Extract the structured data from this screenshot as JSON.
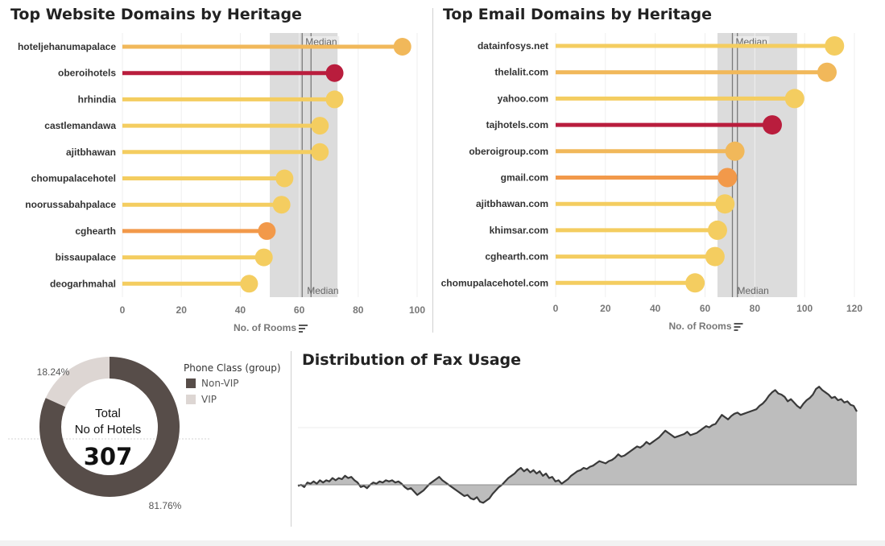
{
  "colors": {
    "light": "#f4cd60",
    "mid": "#f1b85a",
    "orange": "#f2994a",
    "crimson": "#b91d3d",
    "band": "#dcdcdc",
    "dark": "#574d49",
    "vip": "#ddd6d3",
    "area": "#bdbdbd",
    "axis_text": "#777777",
    "label_text": "#333333"
  },
  "chart_data": [
    {
      "type": "lollipop",
      "title": "Top Website Domains by Heritage",
      "xlabel": "No. of Rooms",
      "xlim": [
        0,
        100
      ],
      "xticks": [
        0,
        20,
        40,
        60,
        80,
        100
      ],
      "reference_label": "Median",
      "median_lines": [
        61,
        64
      ],
      "band": [
        50,
        73
      ],
      "categories": [
        "hoteljehanumapalace",
        "oberoihotels",
        "hrhindia",
        "castlemandawa",
        "ajitbhawan",
        "chomupalacehotel",
        "noorussabahpalace",
        "cghearth",
        "bissaupalace",
        "deogarhmahal"
      ],
      "values": [
        95,
        72,
        72,
        67,
        67,
        55,
        54,
        49,
        48,
        43
      ],
      "color_keys": [
        "mid",
        "crimson",
        "light",
        "light",
        "light",
        "light",
        "light",
        "orange",
        "light",
        "light"
      ]
    },
    {
      "type": "lollipop",
      "title": "Top Email Domains by Heritage",
      "xlabel": "No. of Rooms",
      "xlim": [
        0,
        120
      ],
      "xticks": [
        0,
        20,
        40,
        60,
        80,
        100,
        120
      ],
      "reference_label": "Median",
      "median_lines": [
        71,
        73
      ],
      "band": [
        65,
        97
      ],
      "categories": [
        "datainfosys.net",
        "thelalit.com",
        "yahoo.com",
        "tajhotels.com",
        "oberoigroup.com",
        "gmail.com",
        "ajitbhawan.com",
        "khimsar.com",
        "cghearth.com",
        "chomupalacehotel.com"
      ],
      "values": [
        112,
        109,
        96,
        87,
        72,
        69,
        68,
        65,
        64,
        56
      ],
      "color_keys": [
        "light",
        "mid",
        "light",
        "crimson",
        "mid",
        "orange",
        "light",
        "light",
        "light",
        "light"
      ]
    },
    {
      "type": "pie",
      "legend_title": "Phone Class (group)",
      "labels": [
        "Non-VIP",
        "VIP"
      ],
      "values": [
        81.76,
        18.24
      ],
      "value_labels": [
        "81.76%",
        "18.24%"
      ],
      "center_line1": "Total",
      "center_line2": "No of Hotels",
      "center_value": "307"
    },
    {
      "type": "area",
      "title": "Distribution of Fax Usage",
      "baseline": 0,
      "values": [
        -1,
        0,
        -2,
        2,
        1,
        3,
        1,
        4,
        2,
        4,
        3,
        6,
        4,
        6,
        5,
        8,
        6,
        7,
        4,
        2,
        -2,
        -1,
        -3,
        0,
        2,
        1,
        3,
        2,
        4,
        3,
        4,
        2,
        3,
        1,
        -2,
        -4,
        -3,
        -6,
        -9,
        -7,
        -5,
        -2,
        1,
        3,
        5,
        7,
        4,
        2,
        0,
        -2,
        -4,
        -6,
        -8,
        -10,
        -9,
        -12,
        -13,
        -11,
        -15,
        -16,
        -14,
        -12,
        -8,
        -5,
        -2,
        0,
        3,
        6,
        8,
        10,
        13,
        15,
        12,
        14,
        11,
        13,
        10,
        12,
        8,
        10,
        6,
        7,
        3,
        4,
        1,
        3,
        5,
        8,
        10,
        12,
        13,
        15,
        14,
        16,
        17,
        19,
        21,
        20,
        19,
        21,
        22,
        24,
        27,
        25,
        26,
        28,
        30,
        32,
        34,
        33,
        35,
        38,
        36,
        38,
        40,
        42,
        45,
        48,
        46,
        44,
        42,
        43,
        44,
        45,
        47,
        44,
        45,
        46,
        48,
        50,
        52,
        51,
        53,
        54,
        58,
        62,
        60,
        58,
        61,
        63,
        64,
        62,
        63,
        64,
        65,
        66,
        67,
        70,
        72,
        75,
        79,
        82,
        84,
        81,
        80,
        78,
        74,
        76,
        73,
        70,
        68,
        72,
        75,
        77,
        80,
        85,
        87,
        84,
        82,
        80,
        77,
        78,
        75,
        76,
        73,
        74,
        71,
        70,
        65
      ]
    }
  ]
}
